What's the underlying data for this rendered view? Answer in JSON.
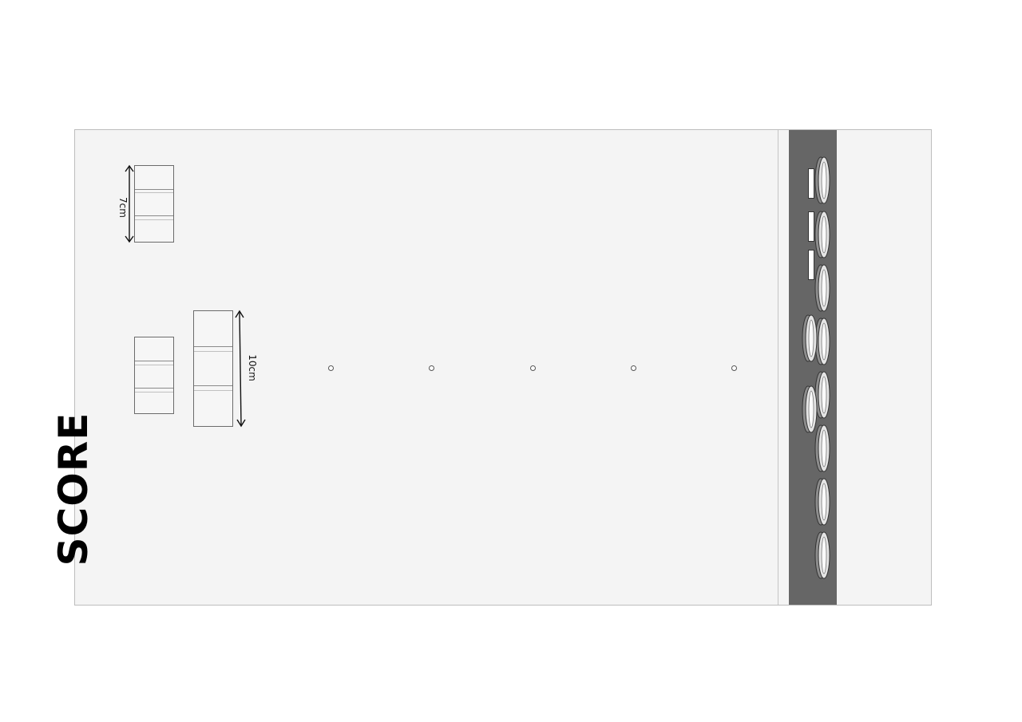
{
  "score": {
    "label": "SCORE"
  },
  "measurements": {
    "small": "7cm",
    "large": "10cm"
  },
  "colors": {
    "board": "#f4f4f4",
    "lane": "#666666",
    "score_text": "#000000"
  },
  "targets": [
    {
      "name": "target-1"
    },
    {
      "name": "target-2"
    },
    {
      "name": "target-3"
    },
    {
      "name": "target-4"
    },
    {
      "name": "target-5"
    }
  ],
  "pucks": {
    "icon": "stone-disc-icon",
    "column_count": 8,
    "offset_count": 2,
    "slot_count": 3
  }
}
